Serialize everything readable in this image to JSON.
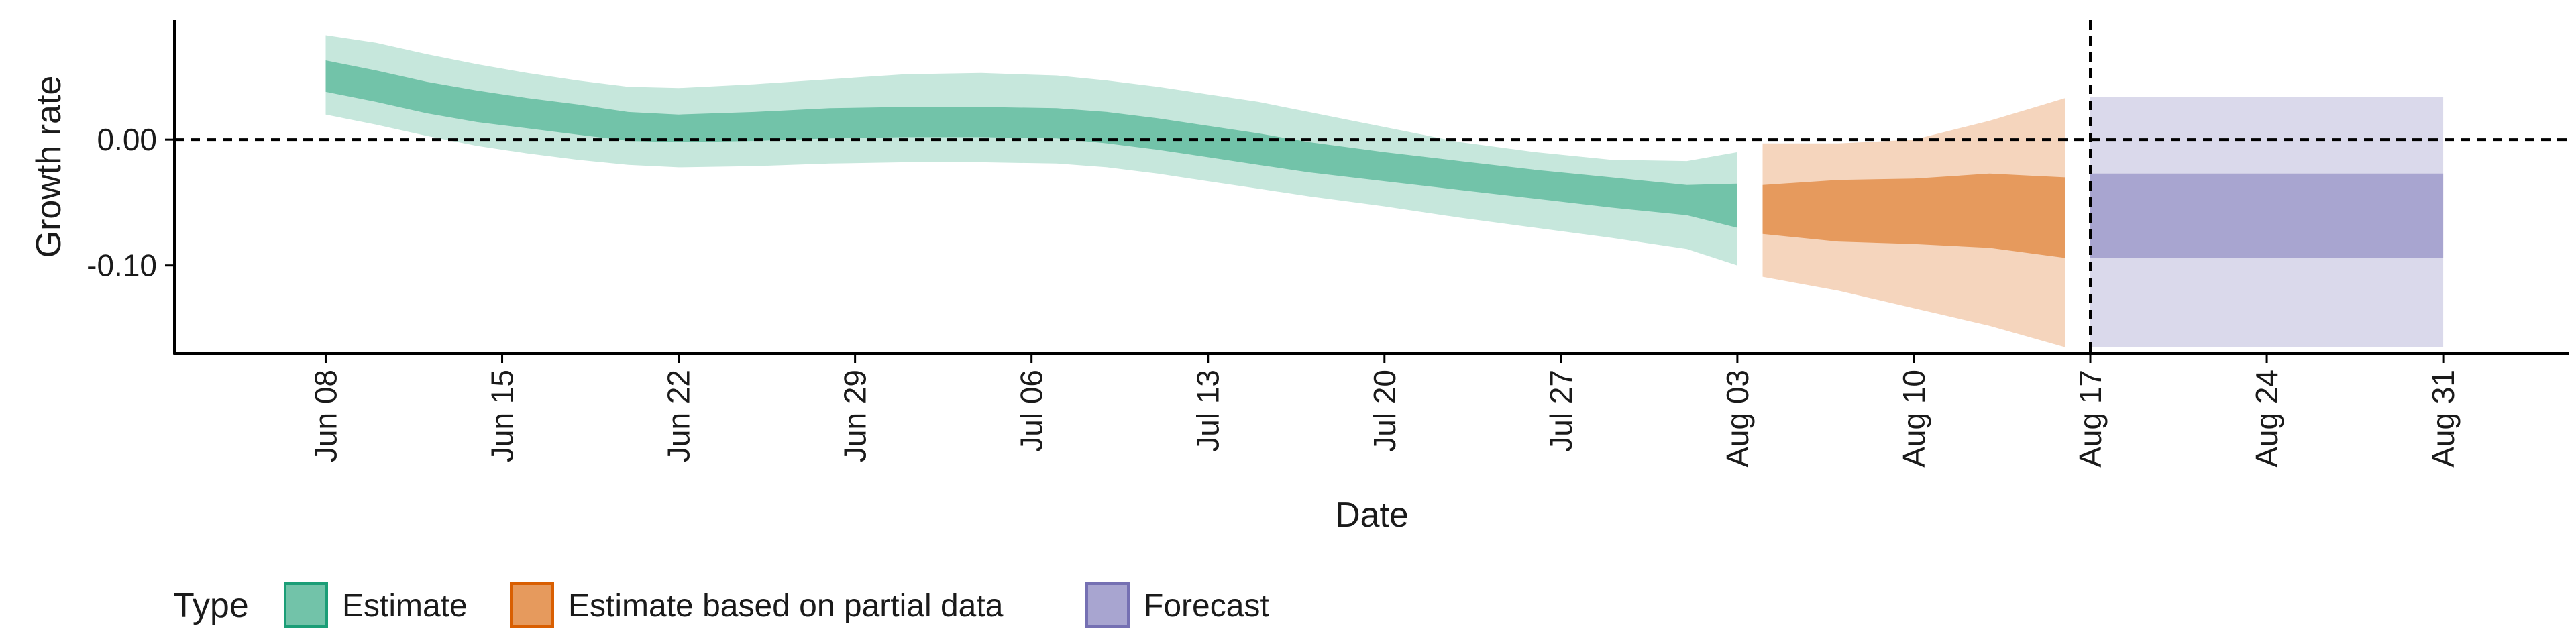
{
  "chart_data": {
    "type": "area",
    "xlabel": "Date",
    "ylabel": "Growth rate",
    "x_axis_type": "date",
    "xlim": [
      "2020-06-02",
      "2020-09-05"
    ],
    "ylim": [
      -0.17,
      0.095
    ],
    "y_ticks": [
      {
        "value": 0.0,
        "label": "0.00"
      },
      {
        "value": -0.1,
        "label": "-0.10"
      }
    ],
    "x_ticks": [
      {
        "date": "2020-06-08",
        "label": "Jun 08"
      },
      {
        "date": "2020-06-15",
        "label": "Jun 15"
      },
      {
        "date": "2020-06-22",
        "label": "Jun 22"
      },
      {
        "date": "2020-06-29",
        "label": "Jun 29"
      },
      {
        "date": "2020-07-06",
        "label": "Jul 06"
      },
      {
        "date": "2020-07-13",
        "label": "Jul 13"
      },
      {
        "date": "2020-07-20",
        "label": "Jul 20"
      },
      {
        "date": "2020-07-27",
        "label": "Jul 27"
      },
      {
        "date": "2020-08-03",
        "label": "Aug 03"
      },
      {
        "date": "2020-08-10",
        "label": "Aug 10"
      },
      {
        "date": "2020-08-17",
        "label": "Aug 17"
      },
      {
        "date": "2020-08-24",
        "label": "Aug 24"
      },
      {
        "date": "2020-08-31",
        "label": "Aug 31"
      }
    ],
    "hline": {
      "y": 0.0,
      "style": "dashed"
    },
    "vline": {
      "date": "2020-08-17",
      "style": "dashed"
    },
    "grid": false,
    "legend": {
      "title": "Type",
      "position": "bottom-left",
      "entries": [
        {
          "label": "Estimate",
          "fill": "#72c3a9",
          "stroke": "#1b9e77"
        },
        {
          "label": "Estimate based on partial data",
          "fill": "#e69a5d",
          "stroke": "#d95f02"
        },
        {
          "label": "Forecast",
          "fill": "#a8a5d0",
          "stroke": "#7570b3"
        }
      ]
    },
    "series": [
      {
        "name": "Estimate",
        "color_outer": "#c6e7dc",
        "color_inner": "#72c3a9",
        "points": [
          {
            "date": "2020-06-08",
            "lo90": 0.02,
            "lo50": 0.038,
            "hi50": 0.063,
            "hi90": 0.083
          },
          {
            "date": "2020-06-10",
            "lo90": 0.012,
            "lo50": 0.03,
            "hi50": 0.055,
            "hi90": 0.077
          },
          {
            "date": "2020-06-12",
            "lo90": 0.003,
            "lo50": 0.021,
            "hi50": 0.046,
            "hi90": 0.068
          },
          {
            "date": "2020-06-14",
            "lo90": -0.005,
            "lo50": 0.014,
            "hi50": 0.039,
            "hi90": 0.06
          },
          {
            "date": "2020-06-16",
            "lo90": -0.011,
            "lo50": 0.009,
            "hi50": 0.033,
            "hi90": 0.053
          },
          {
            "date": "2020-06-18",
            "lo90": -0.016,
            "lo50": 0.004,
            "hi50": 0.028,
            "hi90": 0.047
          },
          {
            "date": "2020-06-20",
            "lo90": -0.02,
            "lo50": -0.001,
            "hi50": 0.022,
            "hi90": 0.042
          },
          {
            "date": "2020-06-22",
            "lo90": -0.022,
            "lo50": -0.002,
            "hi50": 0.02,
            "hi90": 0.041
          },
          {
            "date": "2020-06-25",
            "lo90": -0.021,
            "lo50": -0.001,
            "hi50": 0.022,
            "hi90": 0.044
          },
          {
            "date": "2020-06-28",
            "lo90": -0.019,
            "lo50": 0.001,
            "hi50": 0.025,
            "hi90": 0.048
          },
          {
            "date": "2020-07-01",
            "lo90": -0.018,
            "lo50": 0.002,
            "hi50": 0.026,
            "hi90": 0.052
          },
          {
            "date": "2020-07-04",
            "lo90": -0.018,
            "lo50": 0.002,
            "hi50": 0.026,
            "hi90": 0.053
          },
          {
            "date": "2020-07-07",
            "lo90": -0.019,
            "lo50": 0.001,
            "hi50": 0.025,
            "hi90": 0.051
          },
          {
            "date": "2020-07-09",
            "lo90": -0.022,
            "lo50": -0.003,
            "hi50": 0.022,
            "hi90": 0.047
          },
          {
            "date": "2020-07-11",
            "lo90": -0.027,
            "lo50": -0.008,
            "hi50": 0.017,
            "hi90": 0.042
          },
          {
            "date": "2020-07-13",
            "lo90": -0.033,
            "lo50": -0.014,
            "hi50": 0.011,
            "hi90": 0.036
          },
          {
            "date": "2020-07-15",
            "lo90": -0.039,
            "lo50": -0.02,
            "hi50": 0.005,
            "hi90": 0.03
          },
          {
            "date": "2020-07-17",
            "lo90": -0.045,
            "lo50": -0.026,
            "hi50": -0.002,
            "hi90": 0.022
          },
          {
            "date": "2020-07-20",
            "lo90": -0.053,
            "lo50": -0.033,
            "hi50": -0.01,
            "hi90": 0.01
          },
          {
            "date": "2020-07-23",
            "lo90": -0.062,
            "lo50": -0.04,
            "hi50": -0.017,
            "hi90": -0.002
          },
          {
            "date": "2020-07-26",
            "lo90": -0.07,
            "lo50": -0.047,
            "hi50": -0.024,
            "hi90": -0.01
          },
          {
            "date": "2020-07-29",
            "lo90": -0.078,
            "lo50": -0.054,
            "hi50": -0.03,
            "hi90": -0.016
          },
          {
            "date": "2020-08-01",
            "lo90": -0.087,
            "lo50": -0.06,
            "hi50": -0.036,
            "hi90": -0.017
          },
          {
            "date": "2020-08-03",
            "lo90": -0.1,
            "lo50": -0.07,
            "hi50": -0.035,
            "hi90": -0.01
          }
        ]
      },
      {
        "name": "Estimate based on partial data",
        "color_outer": "#f5d5bd",
        "color_inner": "#e69a5d",
        "points": [
          {
            "date": "2020-08-04",
            "lo90": -0.109,
            "lo50": -0.075,
            "hi50": -0.036,
            "hi90": -0.003
          },
          {
            "date": "2020-08-07",
            "lo90": -0.12,
            "lo50": -0.081,
            "hi50": -0.032,
            "hi90": -0.003
          },
          {
            "date": "2020-08-10",
            "lo90": -0.134,
            "lo50": -0.083,
            "hi50": -0.031,
            "hi90": 0.0
          },
          {
            "date": "2020-08-13",
            "lo90": -0.148,
            "lo50": -0.086,
            "hi50": -0.027,
            "hi90": 0.015
          },
          {
            "date": "2020-08-16",
            "lo90": -0.165,
            "lo50": -0.094,
            "hi50": -0.03,
            "hi90": 0.033
          }
        ]
      },
      {
        "name": "Forecast",
        "color_outer": "#dad9eb",
        "color_inner": "#a8a5d0",
        "points": [
          {
            "date": "2020-08-17",
            "lo90": -0.165,
            "lo50": -0.094,
            "hi50": -0.027,
            "hi90": 0.034
          },
          {
            "date": "2020-08-31",
            "lo90": -0.165,
            "lo50": -0.094,
            "hi50": -0.027,
            "hi90": 0.034
          }
        ]
      }
    ]
  }
}
